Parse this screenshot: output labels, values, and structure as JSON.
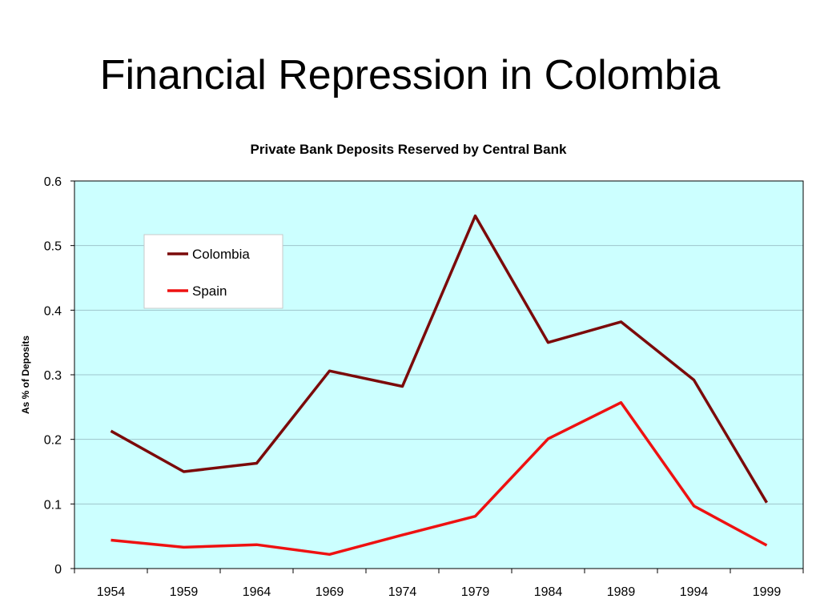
{
  "slide": {
    "title": "Financial Repression in Colombia"
  },
  "colors": {
    "plot_background": "#ccffff",
    "gridline": "#9ec4cc",
    "axis": "#000000",
    "legend_background": "#ffffff"
  },
  "chart_data": {
    "type": "line",
    "title": "Private Bank Deposits Reserved by Central Bank",
    "xlabel": "",
    "ylabel": "As % of Deposits",
    "categories": [
      "1954",
      "1959",
      "1964",
      "1969",
      "1974",
      "1979",
      "1984",
      "1989",
      "1994",
      "1999"
    ],
    "ylim": [
      0,
      0.6
    ],
    "yticks": [
      0,
      0.1,
      0.2,
      0.3,
      0.4,
      0.5,
      0.6
    ],
    "ytick_labels": [
      "0",
      "0.1",
      "0.2",
      "0.3",
      "0.4",
      "0.5",
      "0.6"
    ],
    "grid": true,
    "legend_position": "upper-left inside plot",
    "series": [
      {
        "name": "Colombia",
        "color": "#7b0a0a",
        "values": [
          0.213,
          0.15,
          0.163,
          0.306,
          0.282,
          0.546,
          0.35,
          0.382,
          0.292,
          0.102
        ]
      },
      {
        "name": "Spain",
        "color": "#ee1111",
        "values": [
          0.044,
          0.033,
          0.037,
          0.022,
          0.052,
          0.081,
          0.201,
          0.257,
          0.097,
          0.036
        ]
      }
    ]
  }
}
